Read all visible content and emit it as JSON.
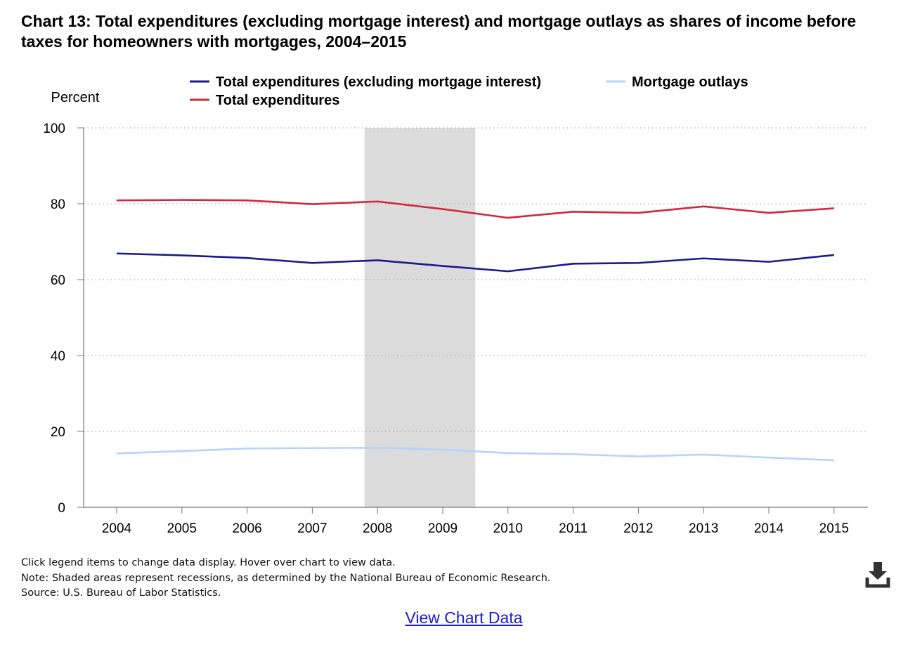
{
  "title": "Chart 13: Total expenditures (excluding mortgage interest) and mortgage outlays as shares of income before taxes for homeowners with mortgages, 2004–2015",
  "chart_data": {
    "type": "line",
    "ylabel": "Percent",
    "xlabel": "",
    "ylim": [
      0,
      100
    ],
    "yticks": [
      0,
      20,
      40,
      60,
      80,
      100
    ],
    "x": [
      "2004",
      "2005",
      "2006",
      "2007",
      "2008",
      "2009",
      "2010",
      "2011",
      "2012",
      "2013",
      "2014",
      "2015"
    ],
    "grid": "horizontal dotted",
    "legend_position": "top",
    "recession_shading": {
      "from": 2007.8,
      "to": 2009.5
    },
    "series": [
      {
        "name": "Total expenditures (excluding mortgage interest)",
        "color": "#1a1a8f",
        "values": [
          66.9,
          66.4,
          65.7,
          64.4,
          65.1,
          63.6,
          62.2,
          64.2,
          64.4,
          65.6,
          64.7,
          66.5
        ]
      },
      {
        "name": "Mortgage outlays",
        "color": "#b5d3fb",
        "values": [
          14.2,
          14.8,
          15.5,
          15.6,
          15.7,
          15.2,
          14.3,
          14.0,
          13.4,
          13.9,
          13.1,
          12.4
        ]
      },
      {
        "name": "Total expenditures",
        "color": "#d1283a",
        "values": [
          80.9,
          81.0,
          80.9,
          79.9,
          80.6,
          78.6,
          76.3,
          77.9,
          77.6,
          79.3,
          77.6,
          78.8
        ]
      }
    ]
  },
  "notes": {
    "instructions": "Click legend items to change data display. Hover over chart to view data.",
    "note": "Note: Shaded areas represent recessions, as determined by the National Bureau of Economic Research.",
    "source": "Source: U.S. Bureau of Labor Statistics."
  },
  "download_icon": "download-icon",
  "view_chart_data_label": "View Chart Data"
}
